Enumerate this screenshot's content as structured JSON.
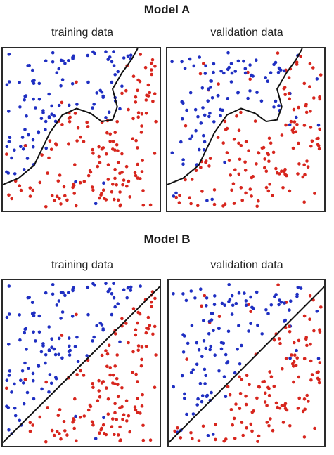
{
  "models": [
    {
      "title": "Model A",
      "panels": [
        {
          "label": "training data"
        },
        {
          "label": "validation data"
        }
      ]
    },
    {
      "title": "Model B",
      "panels": [
        {
          "label": "training data"
        },
        {
          "label": "validation data"
        }
      ]
    }
  ],
  "colors": {
    "class_blue": "#1f2fc2",
    "class_red": "#d7261e",
    "boundary": "#111111"
  }
}
